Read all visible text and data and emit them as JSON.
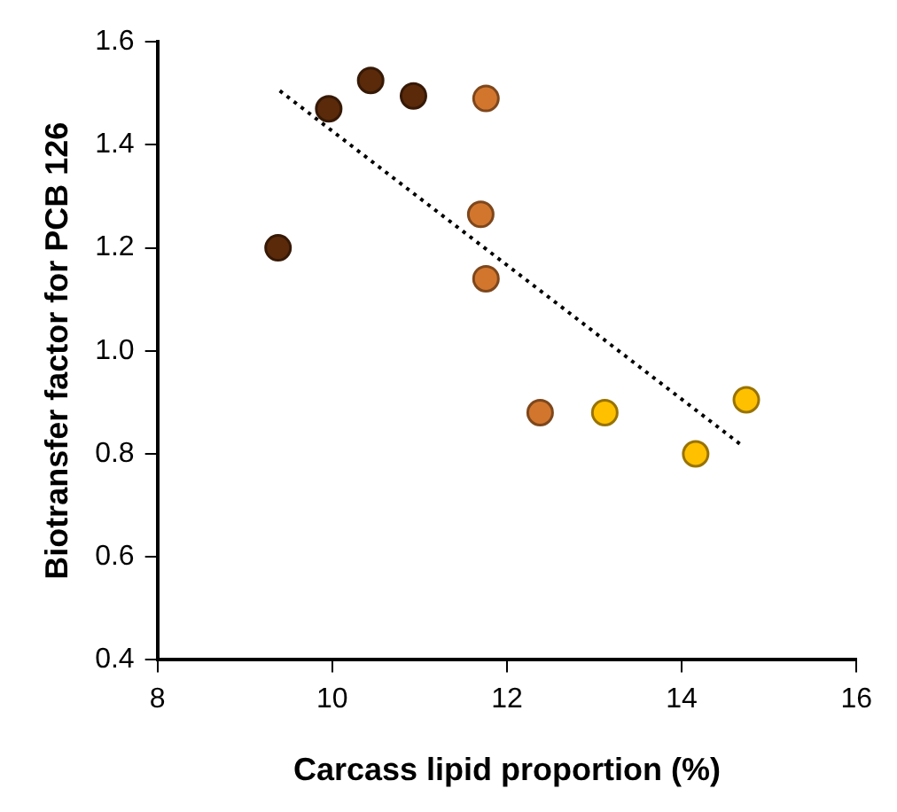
{
  "chart_data": {
    "type": "scatter",
    "xlabel": "Carcass lipid proportion (%)",
    "ylabel": "Biotransfer factor for PCB 126",
    "xlim": [
      8,
      16
    ],
    "xticks": [
      8,
      10,
      12,
      14,
      16
    ],
    "ylim": [
      0.4,
      1.6
    ],
    "yticks": [
      {
        "value": 0.4,
        "label": "0.4"
      },
      {
        "value": 0.6,
        "label": "0.6"
      },
      {
        "value": 0.8,
        "label": "0.8"
      },
      {
        "value": 1.0,
        "label": "1.0"
      },
      {
        "value": 1.2,
        "label": "1.2"
      },
      {
        "value": 1.4,
        "label": "1.4"
      },
      {
        "value": 1.6,
        "label": "1.6"
      }
    ],
    "grid": false,
    "legend": false,
    "marker": "circle",
    "series": [
      {
        "color": "#5a2a0a",
        "x": [
          9.38,
          9.96,
          10.44,
          10.93
        ],
        "values": [
          1.2,
          1.47,
          1.525,
          1.495
        ]
      },
      {
        "color": "#d2762e",
        "x": [
          11.76,
          11.7,
          11.76,
          12.38
        ],
        "values": [
          1.49,
          1.265,
          1.14,
          0.88
        ]
      },
      {
        "color": "#ffc000",
        "x": [
          13.12,
          14.16,
          14.74
        ],
        "values": [
          0.88,
          0.8,
          0.905
        ]
      },
      {
        "type": "line",
        "color": "#000000",
        "line_style": "dotted",
        "marker": "none",
        "x": [
          9.4,
          14.7
        ],
        "values": [
          1.505,
          0.815
        ]
      }
    ]
  }
}
